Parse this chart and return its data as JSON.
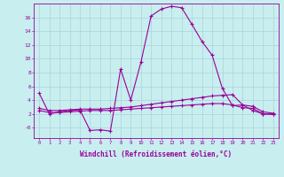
{
  "xlabel": "Windchill (Refroidissement éolien,°C)",
  "bg_color": "#c8eef0",
  "grid_color": "#b0d8da",
  "line_color": "#990099",
  "xlim": [
    -0.5,
    23.5
  ],
  "ylim": [
    -1.5,
    18.0
  ],
  "yticks": [
    0,
    2,
    4,
    6,
    8,
    10,
    12,
    14,
    16
  ],
  "ytick_labels": [
    "-0",
    "2",
    "4",
    "6",
    "8",
    "10",
    "12",
    "14",
    "16"
  ],
  "xticks": [
    0,
    1,
    2,
    3,
    4,
    5,
    6,
    7,
    8,
    9,
    10,
    11,
    12,
    13,
    14,
    15,
    16,
    17,
    18,
    19,
    20,
    21,
    22,
    23
  ],
  "curve1_x": [
    0,
    1,
    2,
    3,
    4,
    5,
    6,
    7,
    8,
    9,
    10,
    11,
    12,
    13,
    14,
    15,
    16,
    17,
    18,
    19,
    20,
    21,
    22,
    23
  ],
  "curve1_y": [
    5.0,
    2.0,
    2.3,
    2.5,
    2.6,
    -0.4,
    -0.3,
    -0.5,
    8.5,
    4.0,
    9.5,
    16.2,
    17.2,
    17.6,
    17.4,
    15.0,
    12.5,
    10.5,
    5.7,
    3.2,
    3.3,
    2.5,
    2.0,
    2.0
  ],
  "curve2_x": [
    0,
    1,
    2,
    3,
    4,
    5,
    6,
    7,
    8,
    9,
    10,
    11,
    12,
    13,
    14,
    15,
    16,
    17,
    18,
    19,
    20,
    21,
    22,
    23
  ],
  "curve2_y": [
    2.8,
    2.5,
    2.5,
    2.6,
    2.7,
    2.7,
    2.7,
    2.8,
    2.9,
    3.0,
    3.2,
    3.4,
    3.6,
    3.8,
    4.0,
    4.2,
    4.4,
    4.6,
    4.7,
    4.8,
    3.3,
    3.1,
    2.3,
    2.1
  ],
  "curve3_x": [
    0,
    1,
    2,
    3,
    4,
    5,
    6,
    7,
    8,
    9,
    10,
    11,
    12,
    13,
    14,
    15,
    16,
    17,
    18,
    19,
    20,
    21,
    22,
    23
  ],
  "curve3_y": [
    2.5,
    2.2,
    2.2,
    2.3,
    2.4,
    2.5,
    2.5,
    2.5,
    2.6,
    2.7,
    2.8,
    2.9,
    3.0,
    3.1,
    3.2,
    3.3,
    3.4,
    3.5,
    3.5,
    3.3,
    2.9,
    2.8,
    2.0,
    1.9
  ]
}
